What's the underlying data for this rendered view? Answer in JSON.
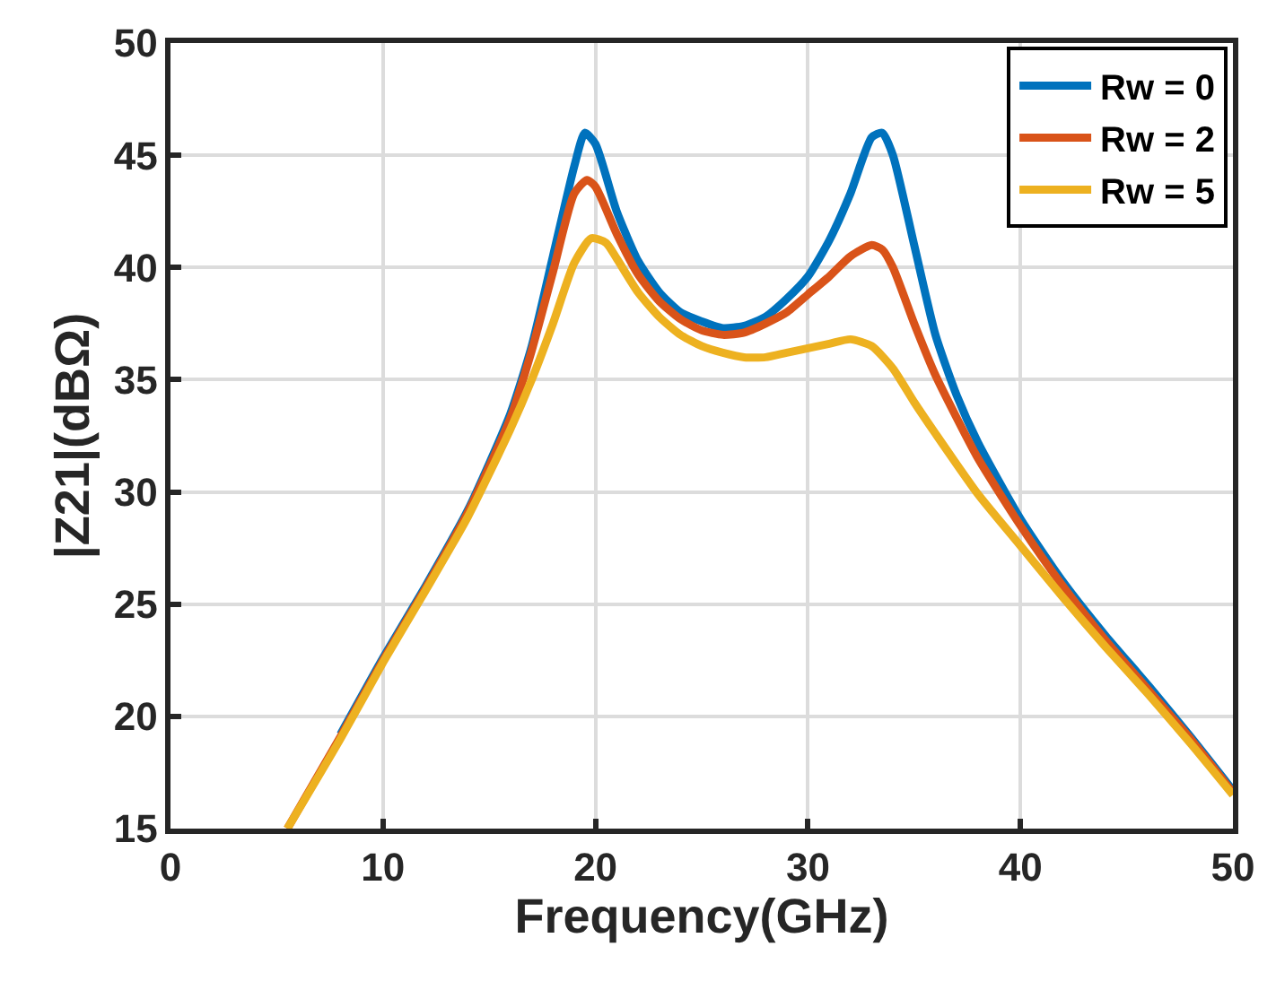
{
  "chart_data": {
    "type": "line",
    "xlabel": "Frequency(GHz)",
    "ylabel": "|Z21|(dBΩ)",
    "xlim": [
      0,
      50
    ],
    "xticks": [
      0,
      10,
      20,
      30,
      40,
      50
    ],
    "ylim": [
      15,
      50
    ],
    "yticks": [
      15,
      20,
      25,
      30,
      35,
      40,
      45,
      50
    ],
    "grid": true,
    "legend": "top right",
    "line_style": "solid",
    "marker": "none",
    "series": [
      {
        "name": "Rw = 0",
        "color": "#0072bd",
        "x": [
          8,
          10,
          12,
          14,
          16,
          17,
          18,
          19,
          19.5,
          20,
          21,
          22,
          23,
          24,
          25,
          26,
          27,
          28,
          29,
          30,
          31,
          32,
          33,
          33.5,
          34,
          35,
          36,
          37,
          38,
          40,
          42,
          44,
          46,
          48,
          50
        ],
        "values": [
          19.2,
          22.6,
          25.8,
          29.2,
          33.5,
          36.5,
          40.5,
          44.5,
          46,
          45.5,
          42.5,
          40.3,
          38.9,
          38,
          37.6,
          37.3,
          37.4,
          37.8,
          38.6,
          39.6,
          41.2,
          43.3,
          45.8,
          46,
          45,
          41,
          37,
          34.3,
          32.2,
          28.8,
          26,
          23.6,
          21.4,
          19.1,
          16.7
        ]
      },
      {
        "name": "Rw = 2",
        "color": "#d95319",
        "x": [
          5.5,
          8,
          10,
          12,
          14,
          16,
          17,
          18,
          19,
          19.6,
          20,
          21,
          22,
          23,
          24,
          25,
          26,
          27,
          28,
          29,
          30,
          31,
          32,
          33,
          33.5,
          34,
          35,
          36,
          37,
          38,
          40,
          42,
          44,
          46,
          48,
          50
        ],
        "values": [
          15,
          19.1,
          22.5,
          25.7,
          29.1,
          33.3,
          36.3,
          39.8,
          43.3,
          43.9,
          43.6,
          41.5,
          39.7,
          38.5,
          37.7,
          37.2,
          37,
          37.1,
          37.5,
          38,
          38.8,
          39.6,
          40.5,
          41,
          40.8,
          40,
          37.5,
          35.2,
          33.3,
          31.5,
          28.5,
          25.8,
          23.4,
          21.2,
          19,
          16.6
        ]
      },
      {
        "name": "Rw = 5",
        "color": "#edb120",
        "x": [
          5.5,
          8,
          10,
          12,
          14,
          16,
          17,
          18,
          19,
          19.8,
          20.5,
          21,
          22,
          23,
          24,
          25,
          26,
          27,
          28,
          29,
          30,
          31,
          32,
          33,
          34,
          35,
          36,
          38,
          40,
          42,
          44,
          46,
          48,
          50
        ],
        "values": [
          15,
          19,
          22.4,
          25.6,
          28.9,
          32.8,
          35,
          37.5,
          40.2,
          41.3,
          41.1,
          40.4,
          38.9,
          37.8,
          37,
          36.5,
          36.2,
          36,
          36,
          36.2,
          36.4,
          36.6,
          36.8,
          36.5,
          35.5,
          34,
          32.6,
          29.9,
          27.6,
          25.3,
          23.1,
          21,
          18.8,
          16.5
        ]
      }
    ]
  }
}
